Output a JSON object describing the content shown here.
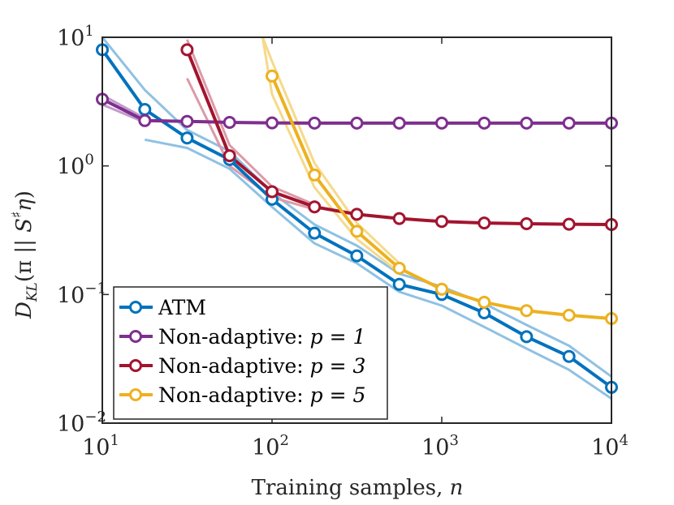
{
  "chart_data": {
    "type": "line",
    "xscale": "log",
    "yscale": "log",
    "xlim": [
      10,
      10000
    ],
    "ylim": [
      0.01,
      10
    ],
    "grid": false,
    "xlabel": "Training samples, n",
    "ylabel": "D_KL(π || Ŝ♯η)",
    "xlabel_parts": {
      "text": "Training samples, ",
      "var": "n"
    },
    "ylabel_parts": {
      "D": "D",
      "sub": "KL",
      "open": "(π || ",
      "S": "S",
      "hat": "^",
      "sharp": "♯",
      "eta": "η",
      "close": ")"
    },
    "x_ticks": [
      {
        "base": "10",
        "exp": "1",
        "value": 10
      },
      {
        "base": "10",
        "exp": "2",
        "value": 100
      },
      {
        "base": "10",
        "exp": "3",
        "value": 1000
      },
      {
        "base": "10",
        "exp": "4",
        "value": 10000
      }
    ],
    "y_ticks": [
      {
        "base": "10",
        "exp": "1",
        "value": 10
      },
      {
        "base": "10",
        "exp": "0",
        "value": 1
      },
      {
        "base": "10",
        "exp": "−1",
        "value": 0.1
      },
      {
        "base": "10",
        "exp": "−2",
        "value": 0.01
      }
    ],
    "legend_position": "bottom-left",
    "series": [
      {
        "name": "ATM",
        "label_text": "ATM",
        "label_var": "",
        "color": "#0072BD",
        "band_color": "#8FC1E3",
        "x": [
          10,
          17.8,
          31.6,
          56.2,
          100,
          178,
          316,
          562,
          1000,
          1780,
          3160,
          5620,
          10000
        ],
        "y": [
          8.0,
          2.75,
          1.65,
          1.12,
          0.55,
          0.3,
          0.2,
          0.12,
          0.1,
          0.072,
          0.047,
          0.033,
          0.019
        ],
        "upper_x": [
          10,
          17.8,
          31.6,
          56.2,
          100,
          178,
          316,
          562,
          1000,
          1780,
          3160,
          5620,
          10000
        ],
        "upper_y": [
          10,
          3.9,
          1.9,
          1.3,
          0.62,
          0.35,
          0.24,
          0.145,
          0.115,
          0.085,
          0.058,
          0.04,
          0.023
        ],
        "lower_x": [
          17.8,
          31.6,
          56.2,
          100,
          178,
          316,
          562,
          1000,
          1780,
          3160,
          5620,
          10000
        ],
        "lower_y": [
          1.6,
          1.38,
          0.95,
          0.48,
          0.25,
          0.175,
          0.105,
          0.082,
          0.056,
          0.038,
          0.026,
          0.0155
        ]
      },
      {
        "name": "Non-adaptive: p = 1",
        "label_text": "Non-adaptive: ",
        "label_var": "p = 1",
        "color": "#7E2F8E",
        "band_color": "#C29BCB",
        "x": [
          10,
          17.8,
          31.6,
          56.2,
          100,
          178,
          316,
          562,
          1000,
          1780,
          3160,
          5620,
          10000
        ],
        "y": [
          3.3,
          2.25,
          2.22,
          2.18,
          2.16,
          2.15,
          2.15,
          2.15,
          2.15,
          2.15,
          2.15,
          2.15,
          2.15
        ],
        "upper_x": [
          10,
          17.8
        ],
        "upper_y": [
          3.55,
          2.35
        ],
        "lower_x": [
          10,
          17.8
        ],
        "lower_y": [
          3.0,
          2.18
        ]
      },
      {
        "name": "Non-adaptive: p = 3",
        "label_text": "Non-adaptive: ",
        "label_var": "p = 3",
        "color": "#A2142F",
        "band_color": "#DD9AA8",
        "x": [
          31.6,
          56.2,
          100,
          178,
          316,
          562,
          1000,
          1780,
          3160,
          5620,
          10000
        ],
        "y": [
          8.0,
          1.2,
          0.63,
          0.48,
          0.42,
          0.39,
          0.37,
          0.36,
          0.355,
          0.352,
          0.35
        ],
        "upper_x": [
          31.6,
          56.2,
          100,
          178
        ],
        "upper_y": [
          9.6,
          1.45,
          0.69,
          0.5
        ],
        "lower_x": [
          31.6,
          56.2,
          100,
          178
        ],
        "lower_y": [
          4.8,
          1.0,
          0.57,
          0.46
        ]
      },
      {
        "name": "Non-adaptive: p = 5",
        "label_text": "Non-adaptive: ",
        "label_var": "p = 5",
        "color": "#EDB120",
        "band_color": "#F6D98A",
        "x": [
          100,
          178,
          316,
          562,
          1000,
          1780,
          3160,
          5620,
          10000
        ],
        "y": [
          5.0,
          0.85,
          0.31,
          0.16,
          0.11,
          0.087,
          0.075,
          0.069,
          0.065
        ],
        "upper_x": [
          88,
          100,
          178,
          316,
          562
        ],
        "upper_y": [
          10,
          6.5,
          1.05,
          0.36,
          0.175
        ],
        "lower_x": [
          88,
          100,
          178,
          316,
          562
        ],
        "lower_y": [
          10,
          3.6,
          0.68,
          0.27,
          0.148
        ]
      }
    ]
  }
}
